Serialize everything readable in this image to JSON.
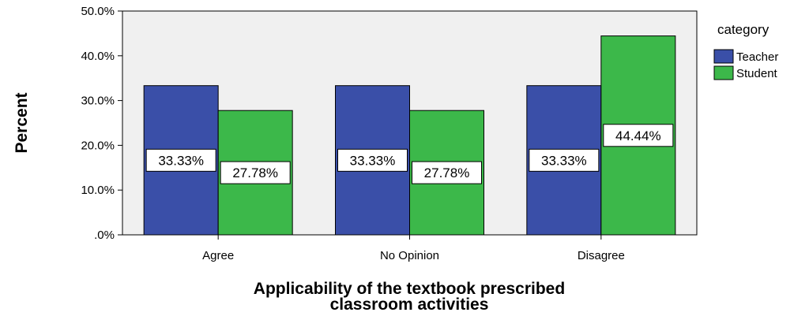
{
  "chart_data": {
    "type": "bar",
    "categories": [
      "Agree",
      "No Opinion",
      "Disagree"
    ],
    "series": [
      {
        "name": "Teacher",
        "values": [
          33.33,
          33.33,
          33.33
        ],
        "labels": [
          "33.33%",
          "33.33%",
          "33.33%"
        ],
        "color": "#3a4fa8"
      },
      {
        "name": "Student",
        "values": [
          27.78,
          27.78,
          44.44
        ],
        "labels": [
          "27.78%",
          "27.78%",
          "44.44%"
        ],
        "color": "#3cb84a"
      }
    ],
    "ylabel": "Percent",
    "xlabel_lines": [
      "Applicability of the textbook prescribed",
      "classroom activities"
    ],
    "ylim": [
      0,
      50
    ],
    "yticks": [
      0,
      10,
      20,
      30,
      40,
      50
    ],
    "ytick_labels": [
      ".0%",
      "10.0%",
      "20.0%",
      "30.0%",
      "40.0%",
      "50.0%"
    ],
    "legend_title": "category",
    "legend_position": "right",
    "plot_background": "#f0f0f0",
    "grid": false
  }
}
